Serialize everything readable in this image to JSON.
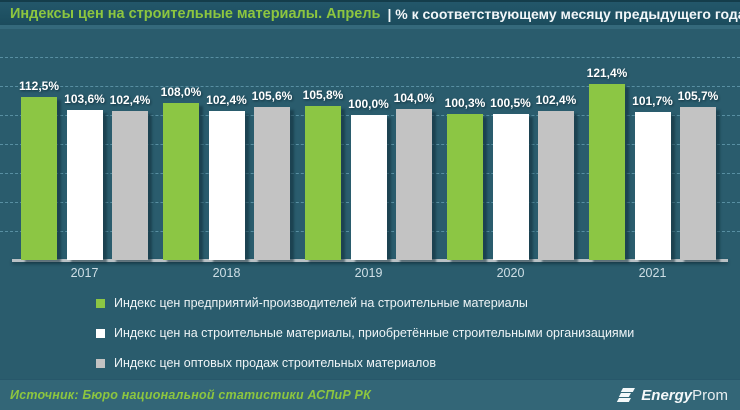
{
  "header": {
    "title": "Индексы цен на строительные материалы. Апрель",
    "subtitle": "| % к соответствующему месяцу предыдущего года"
  },
  "chart_data": {
    "type": "bar",
    "categories": [
      "2017",
      "2018",
      "2019",
      "2020",
      "2021"
    ],
    "series": [
      {
        "name": "Индекс цен предприятий-производителей на строительные материалы",
        "color": "#8cc644",
        "values": [
          112.5,
          108.0,
          105.8,
          100.3,
          121.4
        ]
      },
      {
        "name": "Индекс цен на строительные материалы, приобретённые строительными организациями",
        "color": "#ffffff",
        "values": [
          103.6,
          102.4,
          100.0,
          100.5,
          101.7
        ]
      },
      {
        "name": "Индекс цен оптовых продаж строительных материалов",
        "color": "#c3c3c3",
        "values": [
          102.4,
          105.6,
          104.0,
          102.4,
          105.7
        ]
      }
    ],
    "value_labels": [
      [
        "112,5%",
        "108,0%",
        "105,8%",
        "100,3%",
        "121,4%"
      ],
      [
        "103,6%",
        "102,4%",
        "100,0%",
        "100,5%",
        "101,7%"
      ],
      [
        "102,4%",
        "105,6%",
        "104,0%",
        "102,4%",
        "105,7%"
      ]
    ],
    "ylim": [
      0,
      155
    ],
    "gridline_values": [
      140,
      120,
      100,
      80,
      60,
      40,
      20
    ],
    "grid": "dashed",
    "legend_position": "bottom-left"
  },
  "footer": {
    "source": "Источник: Бюро национальной  статистики АСПиР РК",
    "logo_bold": "Energy",
    "logo_regular": "Prom"
  }
}
